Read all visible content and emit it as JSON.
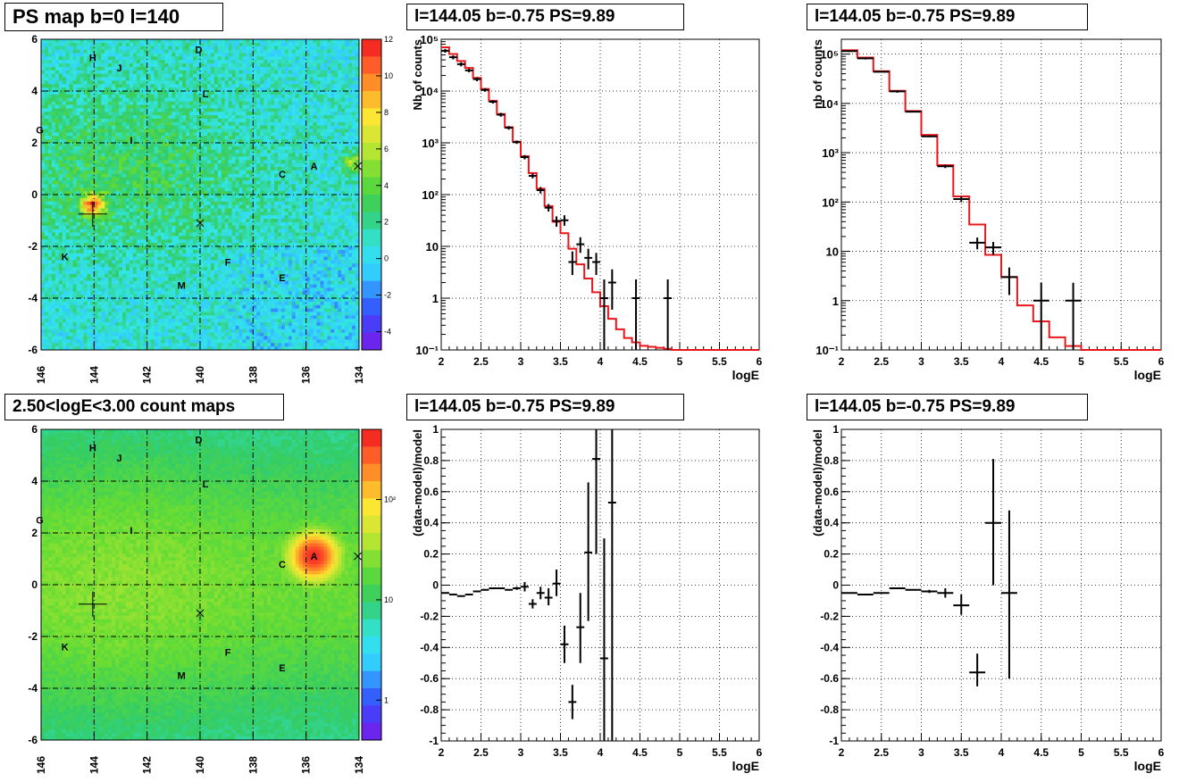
{
  "titles": {
    "map_ps": "PS map b=0 l=140",
    "map_counts": "2.50<logE<3.00 count maps",
    "spec_a": "l=144.05 b=-0.75 PS=9.89",
    "spec_b": "l=144.05 b=-0.75 PS=9.89",
    "resid_a": "l=144.05 b=-0.75 PS=9.89",
    "resid_b": "l=144.05 b=-0.75 PS=9.89"
  },
  "colors": {
    "model": "#e8171b",
    "data": "#000000",
    "map_ps_bg": "#33e6e6",
    "map_counts_bg": "#8ee633"
  },
  "chart_data": [
    {
      "id": "map_ps",
      "type": "heatmap",
      "title": "PS map b=0 l=140",
      "xlim": [
        146,
        134
      ],
      "ylim": [
        -6,
        6
      ],
      "xticks": [
        "146",
        "144",
        "142",
        "140",
        "138",
        "136",
        "134"
      ],
      "yticks": [
        "-6",
        "-4",
        "-2",
        "0",
        "2",
        "4",
        "6"
      ],
      "colorbar": {
        "min": -5,
        "max": 12,
        "ticks": [
          "-4",
          "-2",
          "0",
          "2",
          "4",
          "6",
          "8",
          "10",
          "12"
        ],
        "scale": "linear"
      },
      "grid": true,
      "labels": [
        {
          "text": "H",
          "x": 144.05,
          "y": 5.3
        },
        {
          "text": "J",
          "x": 143.05,
          "y": 4.9
        },
        {
          "text": "D",
          "x": 140.05,
          "y": 5.6
        },
        {
          "text": "L",
          "x": 139.8,
          "y": 3.9
        },
        {
          "text": "G",
          "x": 146.05,
          "y": 2.5
        },
        {
          "text": "I",
          "x": 142.6,
          "y": 2.1
        },
        {
          "text": "C",
          "x": 136.9,
          "y": 0.8
        },
        {
          "text": "A",
          "x": 135.7,
          "y": 1.1
        },
        {
          "text": "K",
          "x": 145.1,
          "y": -2.4
        },
        {
          "text": "F",
          "x": 138.95,
          "y": -2.6
        },
        {
          "text": "M",
          "x": 140.7,
          "y": -3.5
        },
        {
          "text": "E",
          "x": 136.9,
          "y": -3.2
        }
      ],
      "hotspots": [
        {
          "x": 144.05,
          "y": -0.4,
          "value": 9
        },
        {
          "x": 134.2,
          "y": 1.2,
          "value": 5
        }
      ],
      "markers": [
        {
          "x": 144.05,
          "y": -0.75,
          "kind": "plus"
        },
        {
          "x": 140.0,
          "y": -1.1,
          "kind": "x"
        },
        {
          "x": 134.05,
          "y": 1.1,
          "kind": "x"
        }
      ]
    },
    {
      "id": "map_counts",
      "type": "heatmap",
      "title": "2.50<logE<3.00 count maps",
      "xlim": [
        146,
        134
      ],
      "ylim": [
        -6,
        6
      ],
      "xticks": [
        "146",
        "144",
        "142",
        "140",
        "138",
        "136",
        "134"
      ],
      "yticks": [
        "-6",
        "-4",
        "-2",
        "0",
        "2",
        "4",
        "6"
      ],
      "colorbar": {
        "min": 0.4,
        "max": 500,
        "ticks": [
          "1",
          "10",
          "10²"
        ],
        "scale": "log"
      },
      "grid": true,
      "labels": [
        {
          "text": "H",
          "x": 144.05,
          "y": 5.3
        },
        {
          "text": "J",
          "x": 143.05,
          "y": 4.9
        },
        {
          "text": "D",
          "x": 140.05,
          "y": 5.6
        },
        {
          "text": "L",
          "x": 139.8,
          "y": 3.9
        },
        {
          "text": "G",
          "x": 146.05,
          "y": 2.5
        },
        {
          "text": "I",
          "x": 142.6,
          "y": 2.1
        },
        {
          "text": "C",
          "x": 136.9,
          "y": 0.8
        },
        {
          "text": "A",
          "x": 135.7,
          "y": 1.1
        },
        {
          "text": "K",
          "x": 145.1,
          "y": -2.4
        },
        {
          "text": "F",
          "x": 138.95,
          "y": -2.6
        },
        {
          "text": "M",
          "x": 140.7,
          "y": -3.5
        },
        {
          "text": "E",
          "x": 136.9,
          "y": -3.2
        }
      ],
      "hotspots": [
        {
          "x": 135.7,
          "y": 1.1,
          "value": 400
        }
      ],
      "markers": [
        {
          "x": 144.05,
          "y": -0.75,
          "kind": "plus"
        },
        {
          "x": 140.0,
          "y": -1.1,
          "kind": "x"
        },
        {
          "x": 134.05,
          "y": 1.1,
          "kind": "x"
        }
      ]
    },
    {
      "id": "spec_a",
      "type": "line",
      "title": "l=144.05 b=-0.75 PS=9.89",
      "xlabel": "logE",
      "ylabel": "Nb of counts",
      "xlim": [
        2,
        6
      ],
      "ylim": [
        0.1,
        100000
      ],
      "yscale": "log",
      "xticks": [
        "2",
        "2.5",
        "3",
        "3.5",
        "4",
        "4.5",
        "5",
        "5.5",
        "6"
      ],
      "yticks": [
        {
          "v": 0.1,
          "t": "10⁻¹"
        },
        {
          "v": 1,
          "t": "1"
        },
        {
          "v": 10,
          "t": "10"
        },
        {
          "v": 100,
          "t": "10²"
        },
        {
          "v": 1000,
          "t": "10³"
        },
        {
          "v": 10000,
          "t": "10⁴"
        },
        {
          "v": 100000,
          "t": "10⁵"
        }
      ],
      "grid": true,
      "model_edges": [
        2.0,
        2.1,
        2.2,
        2.3,
        2.4,
        2.5,
        2.6,
        2.7,
        2.8,
        2.9,
        3.0,
        3.1,
        3.2,
        3.3,
        3.4,
        3.5,
        3.6,
        3.7,
        3.8,
        3.9,
        4.0,
        4.1,
        4.2,
        4.3,
        4.4,
        4.5,
        4.6,
        4.7,
        4.8,
        4.9,
        6.0
      ],
      "model_values": [
        70000,
        52000,
        38000,
        28000,
        18000,
        11000,
        6500,
        3600,
        2000,
        1050,
        550,
        260,
        130,
        60,
        30,
        18,
        9,
        4.5,
        2.4,
        1.3,
        0.7,
        0.4,
        0.25,
        0.17,
        0.14,
        0.12,
        0.115,
        0.11,
        0.105,
        0.1
      ],
      "data": [
        {
          "x": 2.05,
          "y": 60000,
          "lo": 55000,
          "hi": 65000
        },
        {
          "x": 2.15,
          "y": 45000,
          "lo": 41000,
          "hi": 49000
        },
        {
          "x": 2.25,
          "y": 33000,
          "lo": 30000,
          "hi": 36000
        },
        {
          "x": 2.35,
          "y": 25000,
          "lo": 23000,
          "hi": 27000
        },
        {
          "x": 2.45,
          "y": 17000,
          "lo": 15500,
          "hi": 18500
        },
        {
          "x": 2.55,
          "y": 10500,
          "lo": 9700,
          "hi": 11300
        },
        {
          "x": 2.65,
          "y": 6200,
          "lo": 5700,
          "hi": 6700
        },
        {
          "x": 2.75,
          "y": 3500,
          "lo": 3200,
          "hi": 3800
        },
        {
          "x": 2.85,
          "y": 1950,
          "lo": 1800,
          "hi": 2100
        },
        {
          "x": 2.95,
          "y": 1030,
          "lo": 950,
          "hi": 1110
        },
        {
          "x": 3.05,
          "y": 530,
          "lo": 480,
          "hi": 580
        },
        {
          "x": 3.15,
          "y": 230,
          "lo": 205,
          "hi": 255
        },
        {
          "x": 3.25,
          "y": 122,
          "lo": 105,
          "hi": 140
        },
        {
          "x": 3.35,
          "y": 56,
          "lo": 47,
          "hi": 66
        },
        {
          "x": 3.45,
          "y": 31,
          "lo": 24,
          "hi": 38
        },
        {
          "x": 3.55,
          "y": 32,
          "lo": 25,
          "hi": 40
        },
        {
          "x": 3.65,
          "y": 5,
          "lo": 2.8,
          "hi": 8
        },
        {
          "x": 3.75,
          "y": 11,
          "lo": 7.5,
          "hi": 15
        },
        {
          "x": 3.85,
          "y": 6,
          "lo": 3.6,
          "hi": 9
        },
        {
          "x": 3.95,
          "y": 5,
          "lo": 2.8,
          "hi": 7.5
        },
        {
          "x": 4.05,
          "y": 1,
          "lo": 0.1,
          "hi": 2.3
        },
        {
          "x": 4.15,
          "y": 2,
          "lo": 0.6,
          "hi": 3.6
        },
        {
          "x": 4.45,
          "y": 1,
          "lo": 0.1,
          "hi": 2.3
        },
        {
          "x": 4.85,
          "y": 1,
          "lo": 0.1,
          "hi": 2.3
        }
      ]
    },
    {
      "id": "spec_b",
      "type": "line",
      "title": "l=144.05 b=-0.75 PS=9.89",
      "xlabel": "logE",
      "ylabel": "nb of counts",
      "xlim": [
        2,
        6
      ],
      "ylim": [
        0.1,
        200000
      ],
      "yscale": "log",
      "xticks": [
        "2",
        "2.5",
        "3",
        "3.5",
        "4",
        "4.5",
        "5",
        "5.5",
        "6"
      ],
      "yticks": [
        {
          "v": 0.1,
          "t": "10⁻¹"
        },
        {
          "v": 1,
          "t": "1"
        },
        {
          "v": 10,
          "t": "10"
        },
        {
          "v": 100,
          "t": "10²"
        },
        {
          "v": 1000,
          "t": "10³"
        },
        {
          "v": 10000,
          "t": "10⁴"
        },
        {
          "v": 100000,
          "t": "10⁵"
        }
      ],
      "grid": true,
      "model_edges": [
        2.0,
        2.2,
        2.4,
        2.6,
        2.8,
        3.0,
        3.2,
        3.4,
        3.6,
        3.8,
        4.0,
        4.2,
        4.4,
        4.6,
        4.8,
        5.0,
        6.0
      ],
      "model_values": [
        120000,
        85000,
        45000,
        18000,
        7000,
        2300,
        560,
        130,
        35,
        8.5,
        3,
        0.8,
        0.38,
        0.18,
        0.12,
        0.1
      ],
      "data": [
        {
          "x": 2.1,
          "y": 115000,
          "lo": 110000,
          "hi": 120000
        },
        {
          "x": 2.3,
          "y": 82000,
          "lo": 78000,
          "hi": 86000
        },
        {
          "x": 2.5,
          "y": 44000,
          "lo": 42000,
          "hi": 46000
        },
        {
          "x": 2.7,
          "y": 17500,
          "lo": 16500,
          "hi": 18500
        },
        {
          "x": 2.9,
          "y": 6800,
          "lo": 6500,
          "hi": 7100
        },
        {
          "x": 3.1,
          "y": 2150,
          "lo": 2050,
          "hi": 2250
        },
        {
          "x": 3.3,
          "y": 530,
          "lo": 490,
          "hi": 570
        },
        {
          "x": 3.5,
          "y": 115,
          "lo": 100,
          "hi": 130
        },
        {
          "x": 3.7,
          "y": 15,
          "lo": 11,
          "hi": 19
        },
        {
          "x": 3.9,
          "y": 12,
          "lo": 8.5,
          "hi": 15.5
        },
        {
          "x": 4.1,
          "y": 3,
          "lo": 1.3,
          "hi": 4.7
        },
        {
          "x": 4.5,
          "y": 1,
          "lo": 0.1,
          "hi": 2.3
        },
        {
          "x": 4.9,
          "y": 1,
          "lo": 0.1,
          "hi": 2.3
        }
      ]
    },
    {
      "id": "resid_a",
      "type": "scatter",
      "title": "l=144.05 b=-0.75 PS=9.89",
      "xlabel": "logE",
      "ylabel": "(data-model)/model",
      "xlim": [
        2,
        6
      ],
      "ylim": [
        -1,
        1
      ],
      "xticks": [
        "2",
        "2.5",
        "3",
        "3.5",
        "4",
        "4.5",
        "5",
        "5.5",
        "6"
      ],
      "yticks": [
        "-1",
        "-0.8",
        "-0.6",
        "-0.4",
        "-0.2",
        "0",
        "0.2",
        "0.4",
        "0.6",
        "0.8",
        "1"
      ],
      "grid": true,
      "xhalf": 0.05,
      "data": [
        {
          "x": 2.05,
          "y": -0.05,
          "lo": -0.05,
          "hi": -0.05
        },
        {
          "x": 2.15,
          "y": -0.06,
          "lo": -0.06,
          "hi": -0.06
        },
        {
          "x": 2.25,
          "y": -0.07,
          "lo": -0.07,
          "hi": -0.07
        },
        {
          "x": 2.35,
          "y": -0.06,
          "lo": -0.06,
          "hi": -0.06
        },
        {
          "x": 2.45,
          "y": -0.04,
          "lo": -0.04,
          "hi": -0.04
        },
        {
          "x": 2.55,
          "y": -0.03,
          "lo": -0.03,
          "hi": -0.03
        },
        {
          "x": 2.65,
          "y": -0.02,
          "lo": -0.02,
          "hi": -0.02
        },
        {
          "x": 2.75,
          "y": -0.02,
          "lo": -0.02,
          "hi": -0.02
        },
        {
          "x": 2.85,
          "y": -0.03,
          "lo": -0.03,
          "hi": -0.03
        },
        {
          "x": 2.95,
          "y": -0.02,
          "lo": -0.03,
          "hi": -0.01
        },
        {
          "x": 3.05,
          "y": -0.01,
          "lo": -0.04,
          "hi": 0.02
        },
        {
          "x": 3.15,
          "y": -0.12,
          "lo": -0.15,
          "hi": -0.09
        },
        {
          "x": 3.25,
          "y": -0.05,
          "lo": -0.09,
          "hi": -0.01
        },
        {
          "x": 3.35,
          "y": -0.08,
          "lo": -0.13,
          "hi": -0.02
        },
        {
          "x": 3.45,
          "y": 0.01,
          "lo": -0.07,
          "hi": 0.1
        },
        {
          "x": 3.55,
          "y": -0.38,
          "lo": -0.5,
          "hi": -0.26
        },
        {
          "x": 3.65,
          "y": -0.75,
          "lo": -0.86,
          "hi": -0.64
        },
        {
          "x": 3.75,
          "y": -0.27,
          "lo": -0.5,
          "hi": -0.05
        },
        {
          "x": 3.85,
          "y": 0.21,
          "lo": -0.23,
          "hi": 0.66
        },
        {
          "x": 3.95,
          "y": 0.81,
          "lo": 0.2,
          "hi": 1.0
        },
        {
          "x": 4.05,
          "y": -0.47,
          "lo": -1.0,
          "hi": 0.3
        },
        {
          "x": 4.15,
          "y": 0.53,
          "lo": -1.0,
          "hi": 1.0
        }
      ]
    },
    {
      "id": "resid_b",
      "type": "scatter",
      "title": "l=144.05 b=-0.75 PS=9.89",
      "xlabel": "logE",
      "ylabel": "(data-model)/model",
      "xlim": [
        2,
        6
      ],
      "ylim": [
        -1,
        1
      ],
      "xticks": [
        "2",
        "2.5",
        "3",
        "3.5",
        "4",
        "4.5",
        "5",
        "5.5",
        "6"
      ],
      "yticks": [
        "-1",
        "-0.8",
        "-0.6",
        "-0.4",
        "-0.2",
        "0",
        "0.2",
        "0.4",
        "0.6",
        "0.8",
        "1"
      ],
      "grid": true,
      "xhalf": 0.1,
      "data": [
        {
          "x": 2.1,
          "y": -0.05,
          "lo": -0.05,
          "hi": -0.05
        },
        {
          "x": 2.3,
          "y": -0.06,
          "lo": -0.06,
          "hi": -0.06
        },
        {
          "x": 2.5,
          "y": -0.05,
          "lo": -0.05,
          "hi": -0.05
        },
        {
          "x": 2.7,
          "y": -0.02,
          "lo": -0.02,
          "hi": -0.02
        },
        {
          "x": 2.9,
          "y": -0.03,
          "lo": -0.03,
          "hi": -0.03
        },
        {
          "x": 3.1,
          "y": -0.04,
          "lo": -0.05,
          "hi": -0.03
        },
        {
          "x": 3.3,
          "y": -0.05,
          "lo": -0.08,
          "hi": -0.02
        },
        {
          "x": 3.5,
          "y": -0.13,
          "lo": -0.19,
          "hi": -0.06
        },
        {
          "x": 3.7,
          "y": -0.56,
          "lo": -0.65,
          "hi": -0.44
        },
        {
          "x": 3.9,
          "y": 0.4,
          "lo": 0.0,
          "hi": 0.81
        },
        {
          "x": 4.1,
          "y": -0.05,
          "lo": -0.6,
          "hi": 0.48
        }
      ]
    }
  ]
}
